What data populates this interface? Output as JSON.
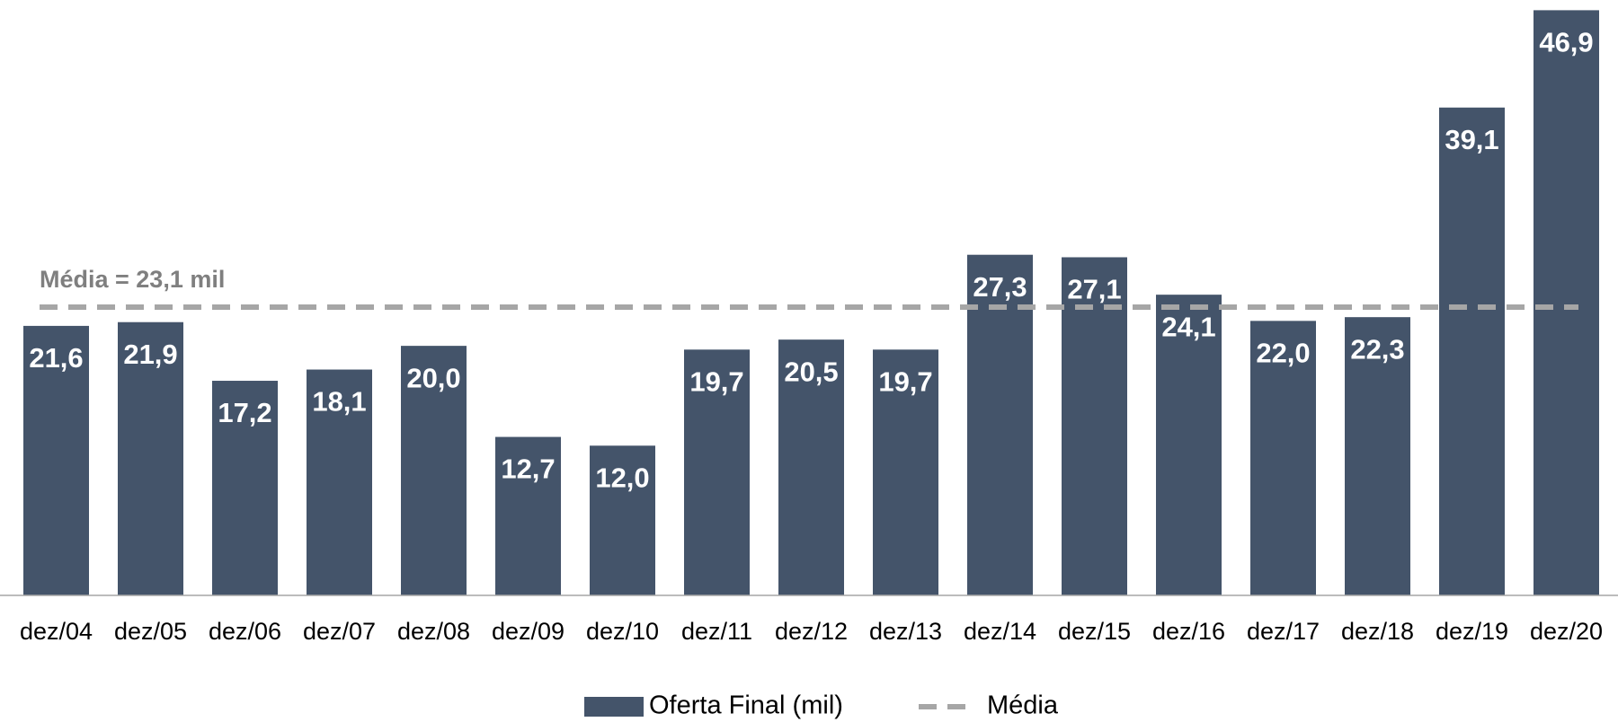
{
  "chart_data": {
    "type": "bar",
    "categories": [
      "dez/04",
      "dez/05",
      "dez/06",
      "dez/07",
      "dez/08",
      "dez/09",
      "dez/10",
      "dez/11",
      "dez/12",
      "dez/13",
      "dez/14",
      "dez/15",
      "dez/16",
      "dez/17",
      "dez/18",
      "dez/19",
      "dez/20"
    ],
    "series": [
      {
        "name": "Oferta Final (mil)",
        "color": "#44546a",
        "values": [
          21.6,
          21.9,
          17.2,
          18.1,
          20.0,
          12.7,
          12.0,
          19.7,
          20.5,
          19.7,
          27.3,
          27.1,
          24.1,
          22.0,
          22.3,
          39.1,
          46.9
        ],
        "value_labels": [
          "21,6",
          "21,9",
          "17,2",
          "18,1",
          "20,0",
          "12,7",
          "12,0",
          "19,7",
          "20,5",
          "19,7",
          "27,3",
          "27,1",
          "24,1",
          "22,0",
          "22,3",
          "39,1",
          "46,9"
        ]
      }
    ],
    "reference_line": {
      "name": "Média",
      "value": 23.1,
      "label": "Média = 23,1 mil",
      "color": "#a6a6a6",
      "dashed": true
    },
    "ylim": [
      0,
      47
    ],
    "grid": false,
    "legend": "bottom"
  }
}
